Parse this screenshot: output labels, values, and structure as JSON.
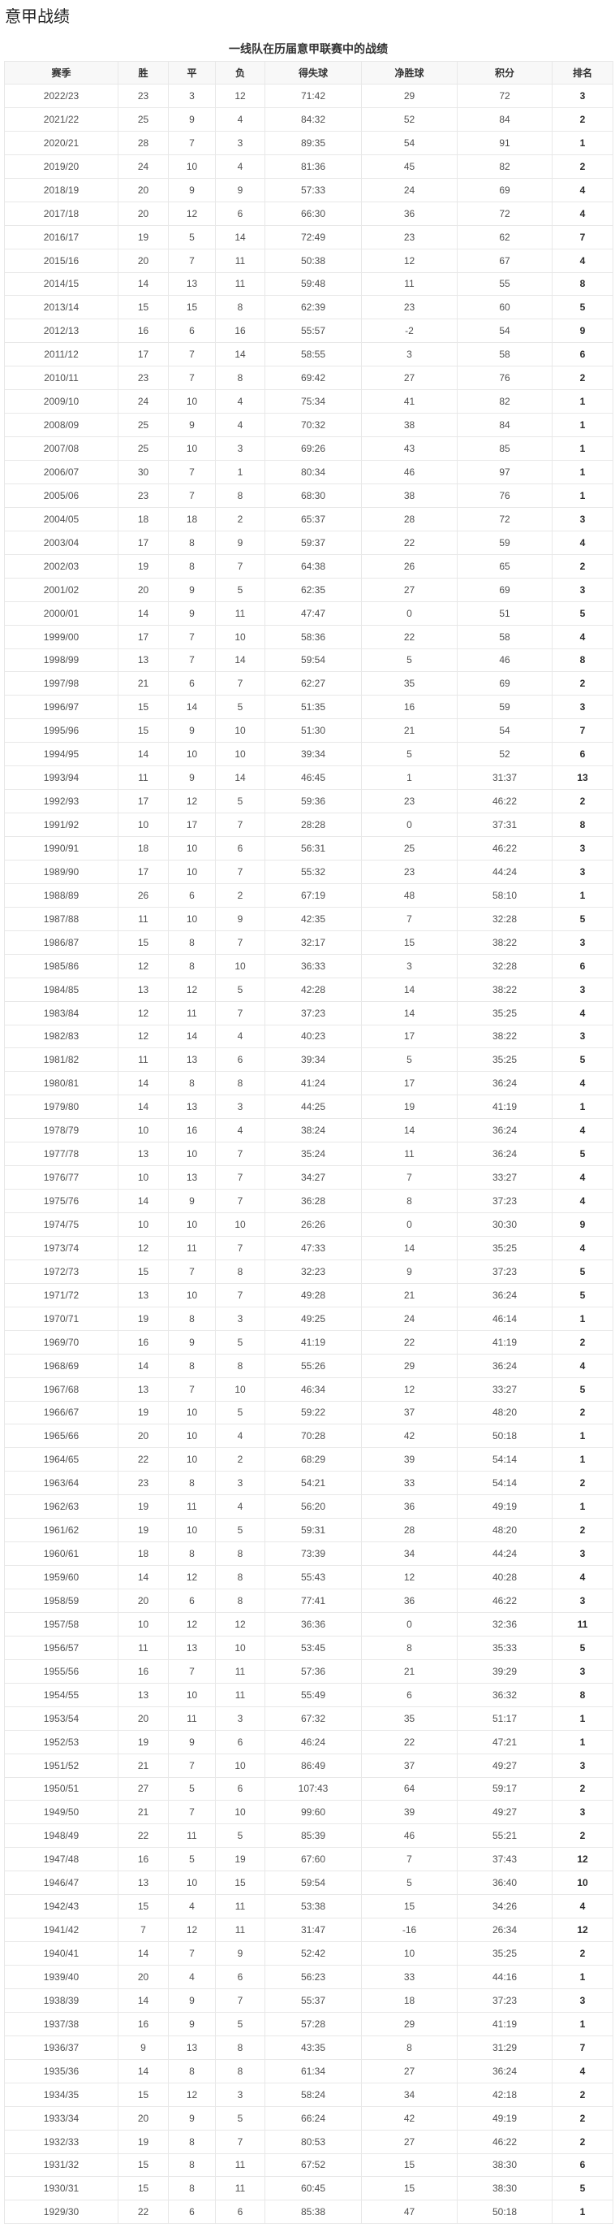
{
  "page_title": "意甲战绩",
  "colors": {
    "page-bg": "#ffffff",
    "border": "#e8e8e8",
    "header-bg": "#f8f8f8",
    "title-color": "#222222",
    "header-text": "#333333",
    "body-text": "#505050",
    "rank-text": "#2b2b2b"
  },
  "table": {
    "caption": "一线队在历届意甲联赛中的战绩",
    "columns": [
      "赛季",
      "胜",
      "平",
      "负",
      "得失球",
      "净胜球",
      "积分",
      "排名"
    ],
    "column_keys": [
      "season-cell",
      "wins-cell",
      "draws-cell",
      "losses-cell",
      "goals-cell",
      "goal-diff-cell",
      "points-cell",
      "rank-cell"
    ],
    "rows": [
      [
        "2022/23",
        "23",
        "3",
        "12",
        "71:42",
        "29",
        "72",
        "3"
      ],
      [
        "2021/22",
        "25",
        "9",
        "4",
        "84:32",
        "52",
        "84",
        "2"
      ],
      [
        "2020/21",
        "28",
        "7",
        "3",
        "89:35",
        "54",
        "91",
        "1"
      ],
      [
        "2019/20",
        "24",
        "10",
        "4",
        "81:36",
        "45",
        "82",
        "2"
      ],
      [
        "2018/19",
        "20",
        "9",
        "9",
        "57:33",
        "24",
        "69",
        "4"
      ],
      [
        "2017/18",
        "20",
        "12",
        "6",
        "66:30",
        "36",
        "72",
        "4"
      ],
      [
        "2016/17",
        "19",
        "5",
        "14",
        "72:49",
        "23",
        "62",
        "7"
      ],
      [
        "2015/16",
        "20",
        "7",
        "11",
        "50:38",
        "12",
        "67",
        "4"
      ],
      [
        "2014/15",
        "14",
        "13",
        "11",
        "59:48",
        "11",
        "55",
        "8"
      ],
      [
        "2013/14",
        "15",
        "15",
        "8",
        "62:39",
        "23",
        "60",
        "5"
      ],
      [
        "2012/13",
        "16",
        "6",
        "16",
        "55:57",
        "-2",
        "54",
        "9"
      ],
      [
        "2011/12",
        "17",
        "7",
        "14",
        "58:55",
        "3",
        "58",
        "6"
      ],
      [
        "2010/11",
        "23",
        "7",
        "8",
        "69:42",
        "27",
        "76",
        "2"
      ],
      [
        "2009/10",
        "24",
        "10",
        "4",
        "75:34",
        "41",
        "82",
        "1"
      ],
      [
        "2008/09",
        "25",
        "9",
        "4",
        "70:32",
        "38",
        "84",
        "1"
      ],
      [
        "2007/08",
        "25",
        "10",
        "3",
        "69:26",
        "43",
        "85",
        "1"
      ],
      [
        "2006/07",
        "30",
        "7",
        "1",
        "80:34",
        "46",
        "97",
        "1"
      ],
      [
        "2005/06",
        "23",
        "7",
        "8",
        "68:30",
        "38",
        "76",
        "1"
      ],
      [
        "2004/05",
        "18",
        "18",
        "2",
        "65:37",
        "28",
        "72",
        "3"
      ],
      [
        "2003/04",
        "17",
        "8",
        "9",
        "59:37",
        "22",
        "59",
        "4"
      ],
      [
        "2002/03",
        "19",
        "8",
        "7",
        "64:38",
        "26",
        "65",
        "2"
      ],
      [
        "2001/02",
        "20",
        "9",
        "5",
        "62:35",
        "27",
        "69",
        "3"
      ],
      [
        "2000/01",
        "14",
        "9",
        "11",
        "47:47",
        "0",
        "51",
        "5"
      ],
      [
        "1999/00",
        "17",
        "7",
        "10",
        "58:36",
        "22",
        "58",
        "4"
      ],
      [
        "1998/99",
        "13",
        "7",
        "14",
        "59:54",
        "5",
        "46",
        "8"
      ],
      [
        "1997/98",
        "21",
        "6",
        "7",
        "62:27",
        "35",
        "69",
        "2"
      ],
      [
        "1996/97",
        "15",
        "14",
        "5",
        "51:35",
        "16",
        "59",
        "3"
      ],
      [
        "1995/96",
        "15",
        "9",
        "10",
        "51:30",
        "21",
        "54",
        "7"
      ],
      [
        "1994/95",
        "14",
        "10",
        "10",
        "39:34",
        "5",
        "52",
        "6"
      ],
      [
        "1993/94",
        "11",
        "9",
        "14",
        "46:45",
        "1",
        "31:37",
        "13"
      ],
      [
        "1992/93",
        "17",
        "12",
        "5",
        "59:36",
        "23",
        "46:22",
        "2"
      ],
      [
        "1991/92",
        "10",
        "17",
        "7",
        "28:28",
        "0",
        "37:31",
        "8"
      ],
      [
        "1990/91",
        "18",
        "10",
        "6",
        "56:31",
        "25",
        "46:22",
        "3"
      ],
      [
        "1989/90",
        "17",
        "10",
        "7",
        "55:32",
        "23",
        "44:24",
        "3"
      ],
      [
        "1988/89",
        "26",
        "6",
        "2",
        "67:19",
        "48",
        "58:10",
        "1"
      ],
      [
        "1987/88",
        "11",
        "10",
        "9",
        "42:35",
        "7",
        "32:28",
        "5"
      ],
      [
        "1986/87",
        "15",
        "8",
        "7",
        "32:17",
        "15",
        "38:22",
        "3"
      ],
      [
        "1985/86",
        "12",
        "8",
        "10",
        "36:33",
        "3",
        "32:28",
        "6"
      ],
      [
        "1984/85",
        "13",
        "12",
        "5",
        "42:28",
        "14",
        "38:22",
        "3"
      ],
      [
        "1983/84",
        "12",
        "11",
        "7",
        "37:23",
        "14",
        "35:25",
        "4"
      ],
      [
        "1982/83",
        "12",
        "14",
        "4",
        "40:23",
        "17",
        "38:22",
        "3"
      ],
      [
        "1981/82",
        "11",
        "13",
        "6",
        "39:34",
        "5",
        "35:25",
        "5"
      ],
      [
        "1980/81",
        "14",
        "8",
        "8",
        "41:24",
        "17",
        "36:24",
        "4"
      ],
      [
        "1979/80",
        "14",
        "13",
        "3",
        "44:25",
        "19",
        "41:19",
        "1"
      ],
      [
        "1978/79",
        "10",
        "16",
        "4",
        "38:24",
        "14",
        "36:24",
        "4"
      ],
      [
        "1977/78",
        "13",
        "10",
        "7",
        "35:24",
        "11",
        "36:24",
        "5"
      ],
      [
        "1976/77",
        "10",
        "13",
        "7",
        "34:27",
        "7",
        "33:27",
        "4"
      ],
      [
        "1975/76",
        "14",
        "9",
        "7",
        "36:28",
        "8",
        "37:23",
        "4"
      ],
      [
        "1974/75",
        "10",
        "10",
        "10",
        "26:26",
        "0",
        "30:30",
        "9"
      ],
      [
        "1973/74",
        "12",
        "11",
        "7",
        "47:33",
        "14",
        "35:25",
        "4"
      ],
      [
        "1972/73",
        "15",
        "7",
        "8",
        "32:23",
        "9",
        "37:23",
        "5"
      ],
      [
        "1971/72",
        "13",
        "10",
        "7",
        "49:28",
        "21",
        "36:24",
        "5"
      ],
      [
        "1970/71",
        "19",
        "8",
        "3",
        "49:25",
        "24",
        "46:14",
        "1"
      ],
      [
        "1969/70",
        "16",
        "9",
        "5",
        "41:19",
        "22",
        "41:19",
        "2"
      ],
      [
        "1968/69",
        "14",
        "8",
        "8",
        "55:26",
        "29",
        "36:24",
        "4"
      ],
      [
        "1967/68",
        "13",
        "7",
        "10",
        "46:34",
        "12",
        "33:27",
        "5"
      ],
      [
        "1966/67",
        "19",
        "10",
        "5",
        "59:22",
        "37",
        "48:20",
        "2"
      ],
      [
        "1965/66",
        "20",
        "10",
        "4",
        "70:28",
        "42",
        "50:18",
        "1"
      ],
      [
        "1964/65",
        "22",
        "10",
        "2",
        "68:29",
        "39",
        "54:14",
        "1"
      ],
      [
        "1963/64",
        "23",
        "8",
        "3",
        "54:21",
        "33",
        "54:14",
        "2"
      ],
      [
        "1962/63",
        "19",
        "11",
        "4",
        "56:20",
        "36",
        "49:19",
        "1"
      ],
      [
        "1961/62",
        "19",
        "10",
        "5",
        "59:31",
        "28",
        "48:20",
        "2"
      ],
      [
        "1960/61",
        "18",
        "8",
        "8",
        "73:39",
        "34",
        "44:24",
        "3"
      ],
      [
        "1959/60",
        "14",
        "12",
        "8",
        "55:43",
        "12",
        "40:28",
        "4"
      ],
      [
        "1958/59",
        "20",
        "6",
        "8",
        "77:41",
        "36",
        "46:22",
        "3"
      ],
      [
        "1957/58",
        "10",
        "12",
        "12",
        "36:36",
        "0",
        "32:36",
        "11"
      ],
      [
        "1956/57",
        "11",
        "13",
        "10",
        "53:45",
        "8",
        "35:33",
        "5"
      ],
      [
        "1955/56",
        "16",
        "7",
        "11",
        "57:36",
        "21",
        "39:29",
        "3"
      ],
      [
        "1954/55",
        "13",
        "10",
        "11",
        "55:49",
        "6",
        "36:32",
        "8"
      ],
      [
        "1953/54",
        "20",
        "11",
        "3",
        "67:32",
        "35",
        "51:17",
        "1"
      ],
      [
        "1952/53",
        "19",
        "9",
        "6",
        "46:24",
        "22",
        "47:21",
        "1"
      ],
      [
        "1951/52",
        "21",
        "7",
        "10",
        "86:49",
        "37",
        "49:27",
        "3"
      ],
      [
        "1950/51",
        "27",
        "5",
        "6",
        "107:43",
        "64",
        "59:17",
        "2"
      ],
      [
        "1949/50",
        "21",
        "7",
        "10",
        "99:60",
        "39",
        "49:27",
        "3"
      ],
      [
        "1948/49",
        "22",
        "11",
        "5",
        "85:39",
        "46",
        "55:21",
        "2"
      ],
      [
        "1947/48",
        "16",
        "5",
        "19",
        "67:60",
        "7",
        "37:43",
        "12"
      ],
      [
        "1946/47",
        "13",
        "10",
        "15",
        "59:54",
        "5",
        "36:40",
        "10"
      ],
      [
        "1942/43",
        "15",
        "4",
        "11",
        "53:38",
        "15",
        "34:26",
        "4"
      ],
      [
        "1941/42",
        "7",
        "12",
        "11",
        "31:47",
        "-16",
        "26:34",
        "12"
      ],
      [
        "1940/41",
        "14",
        "7",
        "9",
        "52:42",
        "10",
        "35:25",
        "2"
      ],
      [
        "1939/40",
        "20",
        "4",
        "6",
        "56:23",
        "33",
        "44:16",
        "1"
      ],
      [
        "1938/39",
        "14",
        "9",
        "7",
        "55:37",
        "18",
        "37:23",
        "3"
      ],
      [
        "1937/38",
        "16",
        "9",
        "5",
        "57:28",
        "29",
        "41:19",
        "1"
      ],
      [
        "1936/37",
        "9",
        "13",
        "8",
        "43:35",
        "8",
        "31:29",
        "7"
      ],
      [
        "1935/36",
        "14",
        "8",
        "8",
        "61:34",
        "27",
        "36:24",
        "4"
      ],
      [
        "1934/35",
        "15",
        "12",
        "3",
        "58:24",
        "34",
        "42:18",
        "2"
      ],
      [
        "1933/34",
        "20",
        "9",
        "5",
        "66:24",
        "42",
        "49:19",
        "2"
      ],
      [
        "1932/33",
        "19",
        "8",
        "7",
        "80:53",
        "27",
        "46:22",
        "2"
      ],
      [
        "1931/32",
        "15",
        "8",
        "11",
        "67:52",
        "15",
        "38:30",
        "6"
      ],
      [
        "1930/31",
        "15",
        "8",
        "11",
        "60:45",
        "15",
        "38:30",
        "5"
      ],
      [
        "1929/30",
        "22",
        "6",
        "6",
        "85:38",
        "47",
        "50:18",
        "1"
      ]
    ]
  }
}
